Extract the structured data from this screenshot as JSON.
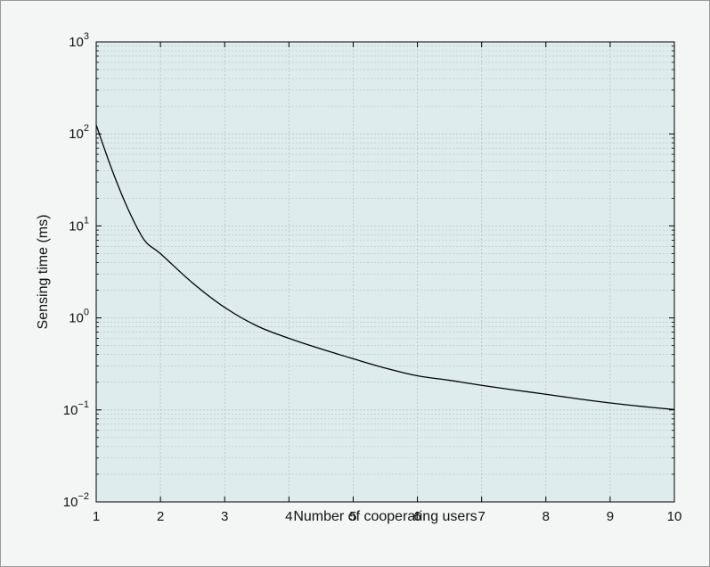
{
  "chart_data": {
    "type": "line",
    "xlabel": "Number of cooperating users",
    "ylabel": "Sensing time (ms)",
    "y_scale": "log",
    "xlim": [
      1,
      10
    ],
    "ylim": [
      0.01,
      1000
    ],
    "grid": true,
    "x_ticks": [
      "1",
      "2",
      "3",
      "4",
      "5",
      "6",
      "7",
      "8",
      "9",
      "10"
    ],
    "y_ticks": [
      {
        "base": "10",
        "exp": "−2"
      },
      {
        "base": "10",
        "exp": "−1"
      },
      {
        "base": "10",
        "exp": "0"
      },
      {
        "base": "10",
        "exp": "1"
      },
      {
        "base": "10",
        "exp": "2"
      },
      {
        "base": "10",
        "exp": "3"
      }
    ],
    "series": [
      {
        "x": [
          1,
          1.25,
          1.5,
          1.75,
          2,
          2.5,
          3,
          3.5,
          4,
          4.5,
          5,
          5.5,
          6,
          6.5,
          7,
          7.5,
          8,
          8.5,
          9,
          9.5,
          10
        ],
        "values": [
          125,
          40,
          15,
          7,
          5.0,
          2.4,
          1.3,
          0.82,
          0.6,
          0.46,
          0.36,
          0.285,
          0.235,
          0.21,
          0.185,
          0.165,
          0.148,
          0.132,
          0.119,
          0.109,
          0.101
        ]
      }
    ]
  },
  "colors": {
    "plot_background": "#deeced",
    "frame_background": "#f4f5f5",
    "line": "#000000",
    "grid": "#b8c2c4"
  }
}
